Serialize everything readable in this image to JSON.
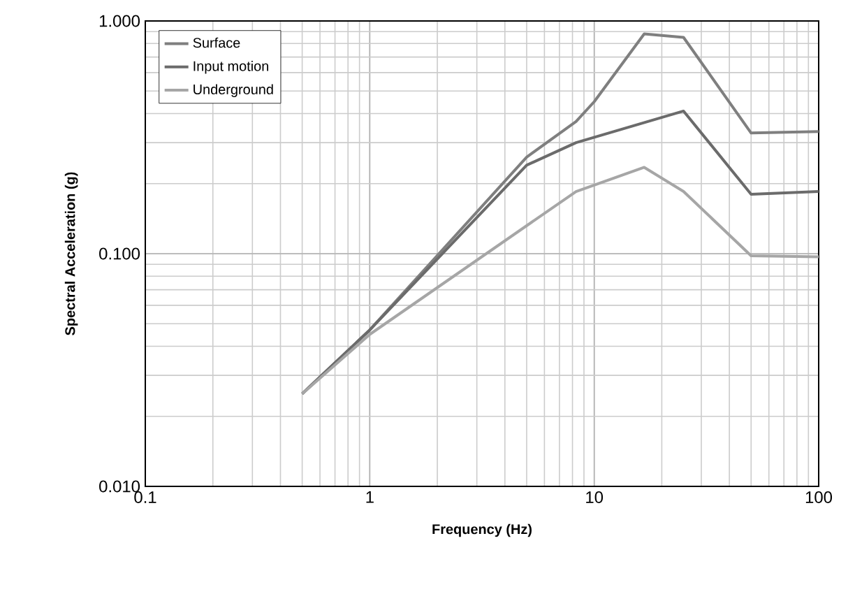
{
  "chart_data": {
    "type": "line",
    "xlabel": "Frequency (Hz)",
    "ylabel": "Spectral Acceleration (g)",
    "series": [
      {
        "name": "Surface",
        "color": "#7f7f7f",
        "x": [
          0.5,
          1,
          5,
          8.3,
          10,
          16.7,
          25,
          50,
          100
        ],
        "values": [
          0.025,
          0.047,
          0.26,
          0.37,
          0.45,
          0.88,
          0.85,
          0.33,
          0.335
        ]
      },
      {
        "name": "Input motion",
        "color": "#6b6b6b",
        "x": [
          0.5,
          1,
          5,
          8.3,
          25,
          50,
          100
        ],
        "values": [
          0.025,
          0.047,
          0.24,
          0.3,
          0.41,
          0.18,
          0.185
        ]
      },
      {
        "name": "Underground",
        "color": "#a6a6a6",
        "x": [
          0.5,
          1,
          8.3,
          16.7,
          25,
          50,
          100
        ],
        "values": [
          0.025,
          0.045,
          0.185,
          0.235,
          0.185,
          0.098,
          0.097
        ]
      }
    ],
    "log": "xy",
    "xlim": [
      0.1,
      100
    ],
    "ylim": [
      0.01,
      1
    ],
    "xticks": [
      0.1,
      1,
      10,
      100
    ],
    "yticks": [
      {
        "value": 0.01,
        "label": "0.010"
      },
      {
        "value": 0.1,
        "label": "0.100"
      },
      {
        "value": 1,
        "label": "1.000"
      }
    ],
    "grid": true,
    "legend": "top left",
    "marker": "none",
    "line_style": "solid"
  }
}
